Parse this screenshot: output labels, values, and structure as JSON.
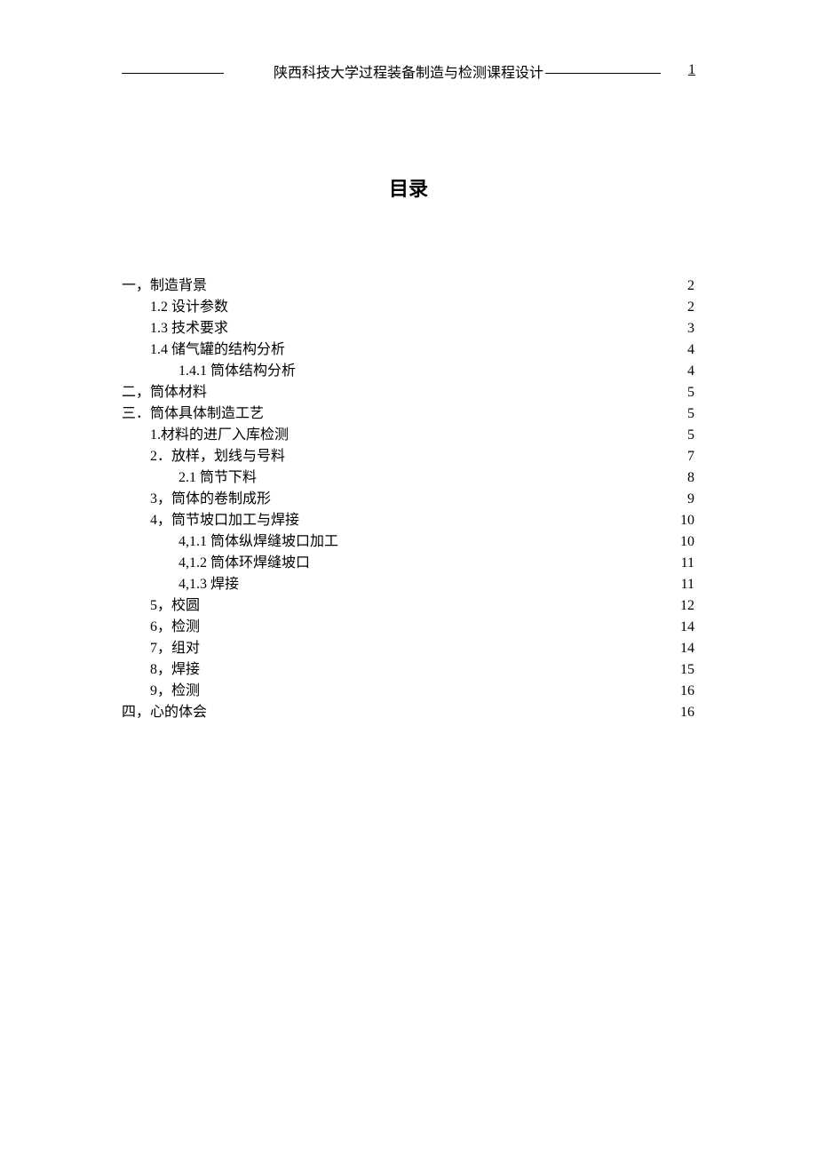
{
  "header": {
    "title": "陕西科技大学过程装备制造与检测课程设计",
    "page_number": "1"
  },
  "toc": {
    "title": "目录",
    "font_size_title": 22,
    "font_size_entry": 16,
    "line_height": 24,
    "text_color": "#000000",
    "background_color": "#ffffff",
    "entries": [
      {
        "label": "一，制造背景",
        "page": "2",
        "indent": 0
      },
      {
        "label": "1.2 设计参数",
        "page": "2",
        "indent": 1
      },
      {
        "label": "1.3 技术要求",
        "page": "3",
        "indent": 1
      },
      {
        "label": "1.4 储气罐的结构分析",
        "page": "4",
        "indent": 1
      },
      {
        "label": "1.4.1 筒体结构分析",
        "page": "4",
        "indent": 2
      },
      {
        "label": "二，筒体材料",
        "page": "5",
        "indent": 0
      },
      {
        "label": "三．筒体具体制造工艺",
        "page": "5",
        "indent": 0
      },
      {
        "label": "1.材料的进厂入库检测",
        "page": "5",
        "indent": 1
      },
      {
        "label": "2．放样，划线与号料",
        "page": "7",
        "indent": 1
      },
      {
        "label": "2.1 筒节下料",
        "page": "8",
        "indent": 2
      },
      {
        "label": "3，筒体的卷制成形",
        "page": "9",
        "indent": 1
      },
      {
        "label": "4，筒节坡口加工与焊接",
        "page": "10",
        "indent": 1
      },
      {
        "label": "4,1.1 筒体纵焊缝坡口加工",
        "page": "10",
        "indent": 2
      },
      {
        "label": "4,1.2 筒体环焊缝坡口",
        "page": "11",
        "indent": 2
      },
      {
        "label": "4,1.3  焊接",
        "page": "11",
        "indent": 2
      },
      {
        "label": "5，校圆",
        "page": "12",
        "indent": 1
      },
      {
        "label": "6，检测",
        "page": "14",
        "indent": 1
      },
      {
        "label": "7，组对",
        "page": "14",
        "indent": 1
      },
      {
        "label": "8，焊接",
        "page": "15",
        "indent": 1
      },
      {
        "label": "9，检测",
        "page": "16",
        "indent": 1
      },
      {
        "label": "四，心的体会",
        "page": "16",
        "indent": 0
      }
    ]
  }
}
